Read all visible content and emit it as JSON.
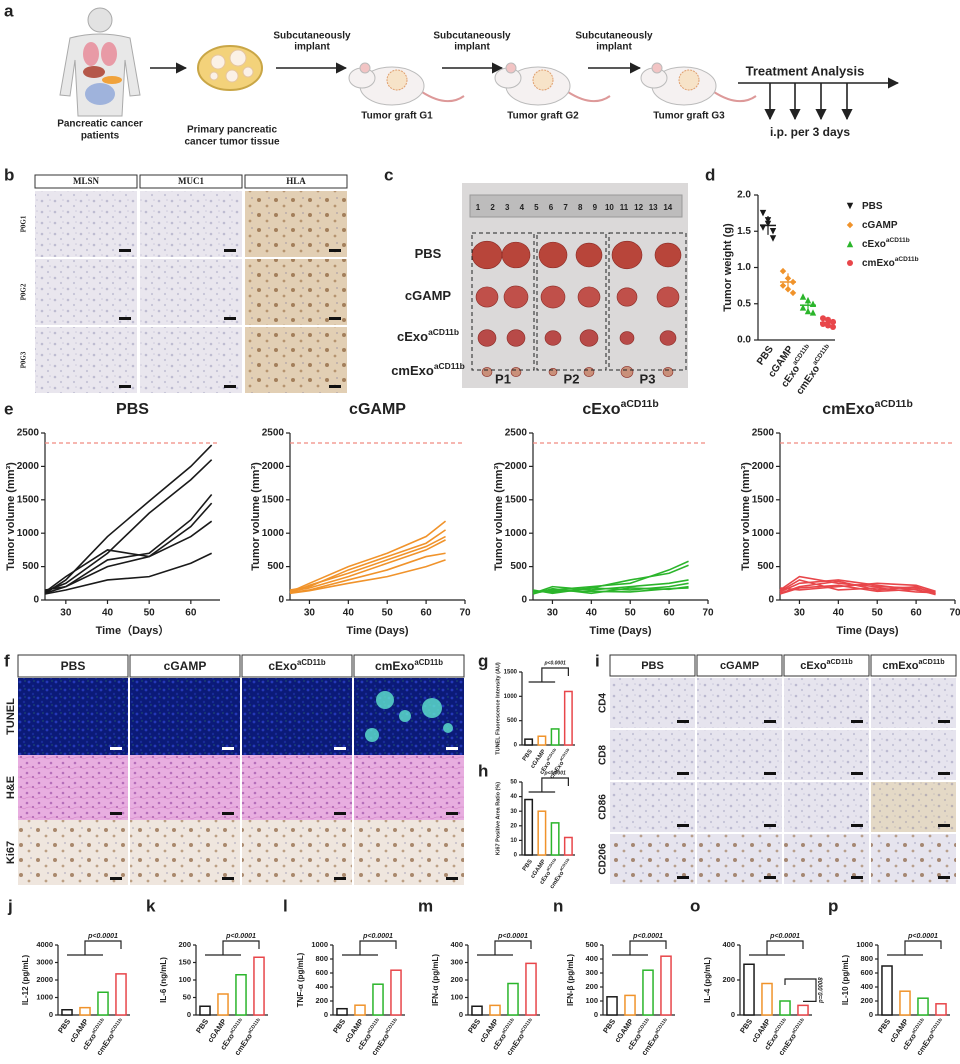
{
  "groups": [
    {
      "base": "PBS"
    },
    {
      "base": "cGAMP"
    },
    {
      "base": "cExo",
      "sup": "aCD11b"
    },
    {
      "base": "cmExo",
      "sup": "aCD11b"
    }
  ],
  "colors": [
    "#1a1a1a",
    "#f0932b",
    "#2bb52b",
    "#e8464a"
  ],
  "panel_a": {
    "label": "a",
    "patients": [
      "Pancreatic cancer",
      "patients"
    ],
    "tissue": [
      "Primary pancreatic",
      "cancer tumor tissue"
    ],
    "implant": [
      "Subcutaneously",
      "implant"
    ],
    "grafts": [
      "Tumor graft G1",
      "Tumor graft G2",
      "Tumor graft G3"
    ],
    "treatment": "Treatment Analysis",
    "schedule": "i.p. per 3 days"
  },
  "panel_b": {
    "label": "b",
    "columns": [
      "MLSN",
      "MUC1",
      "HLA"
    ],
    "rows": [
      "P0G1",
      "P0G2",
      "P0G3"
    ]
  },
  "panel_c": {
    "label": "c",
    "ruler": [
      1,
      2,
      3,
      4,
      5,
      6,
      7,
      8,
      9,
      10,
      11,
      12,
      13,
      14
    ],
    "columns": [
      "P1",
      "P2",
      "P3"
    ]
  },
  "panel_d": {
    "label": "d",
    "type": "scatter",
    "ylabel": "Tumor weight (g)",
    "ylim": [
      0,
      2
    ],
    "yticks": [
      {
        "value": 0,
        "label": "0.0"
      },
      {
        "value": 0.5,
        "label": "0.5"
      },
      {
        "value": 1,
        "label": "1.0"
      },
      {
        "value": 1.5,
        "label": "1.5"
      },
      {
        "value": 2,
        "label": "2.0"
      }
    ],
    "points": [
      [
        1.75,
        1.6,
        1.5,
        1.55,
        1.65,
        1.4
      ],
      [
        0.95,
        0.85,
        0.8,
        0.75,
        0.7,
        0.65
      ],
      [
        0.6,
        0.55,
        0.5,
        0.45,
        0.4,
        0.38
      ],
      [
        0.3,
        0.28,
        0.25,
        0.22,
        0.2,
        0.18
      ]
    ],
    "means": [
      1.58,
      0.8,
      0.48,
      0.24
    ],
    "errors": [
      0.13,
      0.12,
      0.08,
      0.05
    ]
  },
  "panel_e": {
    "label": "e",
    "charts": [
      {
        "type": "line",
        "xlabel": "Time（Days）",
        "ylabel": "Tumor volume (mm³)",
        "xlim": [
          25,
          67
        ],
        "xticks": [
          30,
          40,
          50,
          60
        ],
        "ylim": [
          0,
          2500
        ],
        "yticks": [
          0,
          500,
          1000,
          1500,
          2000,
          2500
        ],
        "threshold": 2350,
        "x": [
          25,
          30,
          40,
          50,
          60,
          65
        ],
        "series": [
          [
            100,
            300,
            950,
            1480,
            2000,
            2320
          ],
          [
            130,
            250,
            700,
            1300,
            1800,
            2100
          ],
          [
            150,
            200,
            600,
            700,
            1200,
            1580
          ],
          [
            120,
            350,
            750,
            650,
            1100,
            1450
          ],
          [
            100,
            200,
            500,
            650,
            950,
            1180
          ],
          [
            90,
            150,
            300,
            350,
            550,
            700
          ]
        ]
      },
      {
        "type": "line",
        "xlabel": "Time (Days)",
        "ylabel": "Tumor volume (mm³)",
        "xlim": [
          25,
          70
        ],
        "xticks": [
          30,
          40,
          50,
          60,
          70
        ],
        "ylim": [
          0,
          2500
        ],
        "yticks": [
          0,
          500,
          1000,
          1500,
          2000,
          2500
        ],
        "threshold": 2350,
        "x": [
          25,
          30,
          40,
          50,
          60,
          65
        ],
        "series": [
          [
            120,
            250,
            500,
            700,
            950,
            1180
          ],
          [
            150,
            200,
            450,
            650,
            850,
            1050
          ],
          [
            100,
            220,
            400,
            600,
            800,
            950
          ],
          [
            130,
            180,
            350,
            550,
            750,
            900
          ],
          [
            110,
            150,
            300,
            450,
            650,
            700
          ],
          [
            100,
            140,
            250,
            350,
            500,
            600
          ]
        ]
      },
      {
        "type": "line",
        "xlabel": "Time (Days)",
        "ylabel": "Tumor volume (mm³)",
        "xlim": [
          25,
          70
        ],
        "xticks": [
          30,
          40,
          50,
          60,
          70
        ],
        "ylim": [
          0,
          2500
        ],
        "yticks": [
          0,
          500,
          1000,
          1500,
          2000,
          2500
        ],
        "threshold": 2350,
        "x": [
          25,
          30,
          40,
          50,
          60,
          65
        ],
        "series": [
          [
            120,
            150,
            200,
            250,
            450,
            580
          ],
          [
            150,
            100,
            180,
            300,
            400,
            520
          ],
          [
            100,
            200,
            150,
            200,
            250,
            300
          ],
          [
            130,
            120,
            180,
            150,
            200,
            250
          ],
          [
            90,
            170,
            100,
            180,
            160,
            200
          ],
          [
            110,
            140,
            130,
            120,
            170,
            180
          ]
        ]
      },
      {
        "type": "line",
        "xlabel": "Time (Days)",
        "ylabel": "Tumor volume (mm³)",
        "xlim": [
          25,
          70
        ],
        "xticks": [
          30,
          40,
          50,
          60,
          70
        ],
        "ylim": [
          0,
          2500
        ],
        "yticks": [
          0,
          500,
          1000,
          1500,
          2000,
          2500
        ],
        "threshold": 2350,
        "x": [
          25,
          30,
          40,
          50,
          60,
          65
        ],
        "series": [
          [
            150,
            350,
            250,
            200,
            180,
            120
          ],
          [
            120,
            250,
            300,
            220,
            150,
            100
          ],
          [
            100,
            200,
            280,
            150,
            200,
            90
          ],
          [
            180,
            150,
            200,
            250,
            220,
            130
          ],
          [
            130,
            300,
            150,
            180,
            120,
            110
          ],
          [
            90,
            180,
            220,
            130,
            160,
            80
          ]
        ]
      }
    ]
  },
  "panel_f": {
    "label": "f",
    "rows": [
      "TUNEL",
      "H&E",
      "Ki67"
    ]
  },
  "panel_i": {
    "label": "i",
    "rows": [
      "CD4",
      "CD8",
      "CD86",
      "CD206"
    ]
  },
  "bars": [
    {
      "label": "g",
      "type": "bar",
      "ylabel": "TUNEL Fluorescence Intensity (AU)",
      "ylim": [
        0,
        1500
      ],
      "yticks": [
        0,
        500,
        1000,
        1500
      ],
      "values": [
        120,
        180,
        330,
        1100
      ],
      "pvalues": [
        "p<0.0001"
      ]
    },
    {
      "label": "h",
      "type": "bar",
      "ylabel": "Ki67 Positive Area Ratio (%)",
      "ylim": [
        0,
        50
      ],
      "yticks": [
        0,
        10,
        20,
        30,
        40,
        50
      ],
      "values": [
        38,
        30,
        22,
        12
      ],
      "pvalues": [
        "p<0.0001"
      ]
    },
    {
      "label": "j",
      "type": "bar",
      "ylabel": "IL-12 (pg/mL)",
      "ylim": [
        0,
        4000
      ],
      "yticks": [
        0,
        1000,
        2000,
        3000,
        4000
      ],
      "values": [
        300,
        420,
        1300,
        2350
      ],
      "pvalues": [
        "p<0.0001"
      ]
    },
    {
      "label": "k",
      "type": "bar",
      "ylabel": "IL-6 (ng/mL)",
      "ylim": [
        0,
        200
      ],
      "yticks": [
        0,
        50,
        100,
        150,
        200
      ],
      "values": [
        25,
        60,
        115,
        165
      ],
      "pvalues": [
        "p<0.0001"
      ]
    },
    {
      "label": "l",
      "type": "bar",
      "ylabel": "TNF-α (pg/mL)",
      "ylim": [
        0,
        1000
      ],
      "yticks": [
        0,
        200,
        400,
        600,
        800,
        1000
      ],
      "values": [
        90,
        140,
        440,
        640
      ],
      "pvalues": [
        "p<0.0001"
      ]
    },
    {
      "label": "m",
      "type": "bar",
      "ylabel": "IFN-α (pg/mL)",
      "ylim": [
        0,
        400
      ],
      "yticks": [
        0,
        100,
        200,
        300,
        400
      ],
      "values": [
        50,
        55,
        180,
        295
      ],
      "pvalues": [
        "p<0.0001"
      ]
    },
    {
      "label": "n",
      "type": "bar",
      "ylabel": "IFN-β (pg/mL)",
      "ylim": [
        0,
        500
      ],
      "yticks": [
        0,
        100,
        200,
        300,
        400,
        500
      ],
      "values": [
        130,
        140,
        320,
        420
      ],
      "pvalues": [
        "p<0.0001"
      ]
    },
    {
      "label": "o",
      "type": "bar",
      "ylabel": "IL-4 (pg/mL)",
      "ylim": [
        0,
        400
      ],
      "yticks": [
        0,
        200,
        400
      ],
      "values": [
        290,
        180,
        80,
        55
      ],
      "pvalues": [
        "p<0.0001",
        "p=0.0008"
      ]
    },
    {
      "label": "p",
      "type": "bar",
      "ylabel": "IL-10 (pg/mL)",
      "ylim": [
        0,
        1000
      ],
      "yticks": [
        0,
        200,
        400,
        600,
        800,
        1000
      ],
      "values": [
        700,
        340,
        240,
        160
      ],
      "pvalues": [
        "p<0.0001"
      ]
    }
  ]
}
